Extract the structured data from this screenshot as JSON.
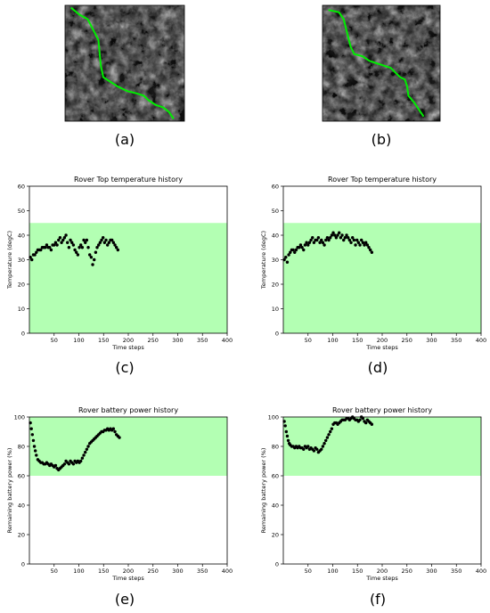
{
  "panels": {
    "a": "(a)",
    "b": "(b)",
    "c": "(c)",
    "d": "(d)",
    "e": "(e)",
    "f": "(f)"
  },
  "colors": {
    "safe_band": "#b3ffb3",
    "path": "#00ee00",
    "markers": "#000000",
    "terrain_dark": "#1a1a1a",
    "terrain_light": "#dcdcdc"
  },
  "maps": [
    {
      "id": "map-a",
      "path": [
        [
          0.05,
          0.02
        ],
        [
          0.12,
          0.08
        ],
        [
          0.19,
          0.12
        ],
        [
          0.24,
          0.22
        ],
        [
          0.28,
          0.3
        ],
        [
          0.29,
          0.42
        ],
        [
          0.3,
          0.52
        ],
        [
          0.32,
          0.62
        ],
        [
          0.38,
          0.66
        ],
        [
          0.44,
          0.7
        ],
        [
          0.52,
          0.74
        ],
        [
          0.6,
          0.76
        ],
        [
          0.66,
          0.78
        ],
        [
          0.7,
          0.82
        ],
        [
          0.76,
          0.86
        ],
        [
          0.82,
          0.88
        ],
        [
          0.87,
          0.92
        ],
        [
          0.91,
          0.98
        ]
      ]
    },
    {
      "id": "map-b",
      "path": [
        [
          0.05,
          0.04
        ],
        [
          0.14,
          0.06
        ],
        [
          0.18,
          0.12
        ],
        [
          0.2,
          0.2
        ],
        [
          0.22,
          0.28
        ],
        [
          0.24,
          0.36
        ],
        [
          0.27,
          0.42
        ],
        [
          0.34,
          0.44
        ],
        [
          0.4,
          0.48
        ],
        [
          0.46,
          0.5
        ],
        [
          0.52,
          0.52
        ],
        [
          0.58,
          0.54
        ],
        [
          0.62,
          0.58
        ],
        [
          0.66,
          0.62
        ],
        [
          0.7,
          0.64
        ],
        [
          0.72,
          0.7
        ],
        [
          0.73,
          0.78
        ],
        [
          0.78,
          0.84
        ],
        [
          0.82,
          0.9
        ],
        [
          0.86,
          0.96
        ]
      ]
    }
  ],
  "chart_data": [
    {
      "id": "c",
      "type": "scatter",
      "title": "Rover Top temperature history",
      "xlabel": "Time steps",
      "ylabel": "Temperature (degC)",
      "xlim": [
        0,
        400
      ],
      "ylim": [
        0,
        60
      ],
      "xticks": [
        50,
        100,
        150,
        200,
        250,
        300,
        350,
        400
      ],
      "yticks": [
        0,
        10,
        20,
        30,
        40,
        50,
        60
      ],
      "band": [
        0,
        45
      ],
      "series": [
        {
          "x": [
            2,
            5,
            8,
            11,
            14,
            17,
            20,
            23,
            26,
            29,
            32,
            35,
            38,
            41,
            44,
            47,
            50,
            53,
            56,
            59,
            62,
            65,
            68,
            71,
            74,
            77,
            80,
            83,
            86,
            89,
            92,
            95,
            98,
            101,
            104,
            107,
            110,
            113,
            116,
            119,
            122,
            125,
            128,
            131,
            134,
            137,
            140,
            143,
            146,
            149,
            152,
            155,
            158,
            161,
            164,
            167,
            170,
            173,
            176,
            179
          ],
          "y": [
            31,
            30,
            32,
            32,
            33,
            34,
            34,
            34,
            35,
            35,
            35,
            36,
            35,
            35,
            34,
            36,
            36,
            37,
            36,
            38,
            39,
            37,
            38,
            39,
            40,
            37,
            35,
            38,
            37,
            36,
            34,
            33,
            32,
            35,
            36,
            35,
            38,
            37,
            38,
            35,
            32,
            31,
            28,
            30,
            33,
            35,
            36,
            37,
            38,
            39,
            37,
            38,
            36,
            37,
            38,
            38,
            37,
            36,
            35,
            34
          ]
        }
      ]
    },
    {
      "id": "d",
      "type": "scatter",
      "title": "Rover Top temperature history",
      "xlabel": "Time steps",
      "ylabel": "Temperature (degC)",
      "xlim": [
        0,
        400
      ],
      "ylim": [
        0,
        60
      ],
      "xticks": [
        50,
        100,
        150,
        200,
        250,
        300,
        350,
        400
      ],
      "yticks": [
        0,
        10,
        20,
        30,
        40,
        50,
        60
      ],
      "band": [
        0,
        45
      ],
      "series": [
        {
          "x": [
            2,
            5,
            8,
            11,
            14,
            17,
            20,
            23,
            26,
            29,
            32,
            35,
            38,
            41,
            44,
            47,
            50,
            53,
            56,
            59,
            62,
            65,
            68,
            71,
            74,
            77,
            80,
            83,
            86,
            89,
            92,
            95,
            98,
            101,
            104,
            107,
            110,
            113,
            116,
            119,
            122,
            125,
            128,
            131,
            134,
            137,
            140,
            143,
            146,
            149,
            152,
            155,
            158,
            161,
            164,
            167,
            170,
            173,
            176,
            179
          ],
          "y": [
            30,
            31,
            29,
            32,
            33,
            34,
            34,
            33,
            34,
            35,
            35,
            36,
            35,
            34,
            36,
            37,
            36,
            37,
            38,
            39,
            37,
            38,
            38,
            39,
            37,
            38,
            37,
            36,
            38,
            39,
            38,
            39,
            40,
            41,
            40,
            39,
            40,
            41,
            39,
            40,
            38,
            39,
            40,
            39,
            38,
            37,
            39,
            38,
            36,
            38,
            37,
            36,
            38,
            37,
            36,
            37,
            36,
            35,
            34,
            33
          ]
        }
      ]
    },
    {
      "id": "e",
      "type": "scatter",
      "title": "Rover battery power history",
      "xlabel": "Time steps",
      "ylabel": "Remaining battery power (%)",
      "xlim": [
        0,
        400
      ],
      "ylim": [
        0,
        100
      ],
      "xticks": [
        50,
        100,
        150,
        200,
        250,
        300,
        350,
        400
      ],
      "yticks": [
        0,
        20,
        40,
        60,
        80,
        100
      ],
      "band": [
        60,
        100
      ],
      "series": [
        {
          "x": [
            2,
            4,
            6,
            8,
            10,
            12,
            14,
            17,
            20,
            23,
            26,
            29,
            32,
            35,
            38,
            41,
            44,
            47,
            50,
            53,
            56,
            59,
            62,
            65,
            68,
            71,
            74,
            77,
            80,
            83,
            86,
            89,
            92,
            95,
            98,
            101,
            104,
            107,
            110,
            113,
            116,
            119,
            122,
            125,
            128,
            131,
            134,
            137,
            140,
            143,
            146,
            149,
            152,
            155,
            158,
            161,
            164,
            167,
            170,
            173,
            176,
            179,
            182
          ],
          "y": [
            96,
            92,
            88,
            84,
            80,
            77,
            74,
            71,
            70,
            69,
            69,
            68,
            68,
            69,
            68,
            67,
            68,
            67,
            66,
            67,
            65,
            64,
            65,
            66,
            67,
            68,
            70,
            69,
            68,
            70,
            69,
            68,
            70,
            69,
            70,
            69,
            70,
            72,
            74,
            76,
            78,
            80,
            82,
            83,
            84,
            85,
            86,
            87,
            88,
            89,
            90,
            90,
            91,
            91,
            92,
            91,
            92,
            91,
            92,
            90,
            88,
            87,
            86
          ]
        }
      ]
    },
    {
      "id": "f",
      "type": "scatter",
      "title": "Rover battery power history",
      "xlabel": "Time steps",
      "ylabel": "Remaining battery power (%)",
      "xlim": [
        0,
        400
      ],
      "ylim": [
        0,
        100
      ],
      "xticks": [
        50,
        100,
        150,
        200,
        250,
        300,
        350,
        400
      ],
      "yticks": [
        0,
        20,
        40,
        60,
        80,
        100
      ],
      "band": [
        60,
        100
      ],
      "series": [
        {
          "x": [
            2,
            4,
            6,
            8,
            10,
            12,
            14,
            17,
            20,
            23,
            26,
            29,
            32,
            35,
            38,
            41,
            44,
            47,
            50,
            53,
            56,
            59,
            62,
            65,
            68,
            71,
            74,
            77,
            80,
            83,
            86,
            89,
            92,
            95,
            98,
            101,
            104,
            107,
            110,
            113,
            116,
            119,
            122,
            125,
            128,
            131,
            134,
            137,
            140,
            143,
            146,
            149,
            152,
            155,
            158,
            161,
            164,
            167,
            170,
            173,
            176,
            179
          ],
          "y": [
            97,
            94,
            90,
            87,
            84,
            82,
            81,
            80,
            80,
            79,
            80,
            79,
            80,
            79,
            79,
            78,
            80,
            79,
            80,
            78,
            79,
            78,
            77,
            79,
            78,
            76,
            77,
            78,
            80,
            82,
            84,
            86,
            88,
            90,
            92,
            95,
            96,
            96,
            95,
            96,
            97,
            98,
            98,
            98,
            99,
            99,
            98,
            99,
            100,
            99,
            98,
            98,
            97,
            98,
            100,
            99,
            97,
            96,
            98,
            97,
            96,
            95
          ]
        }
      ]
    }
  ]
}
